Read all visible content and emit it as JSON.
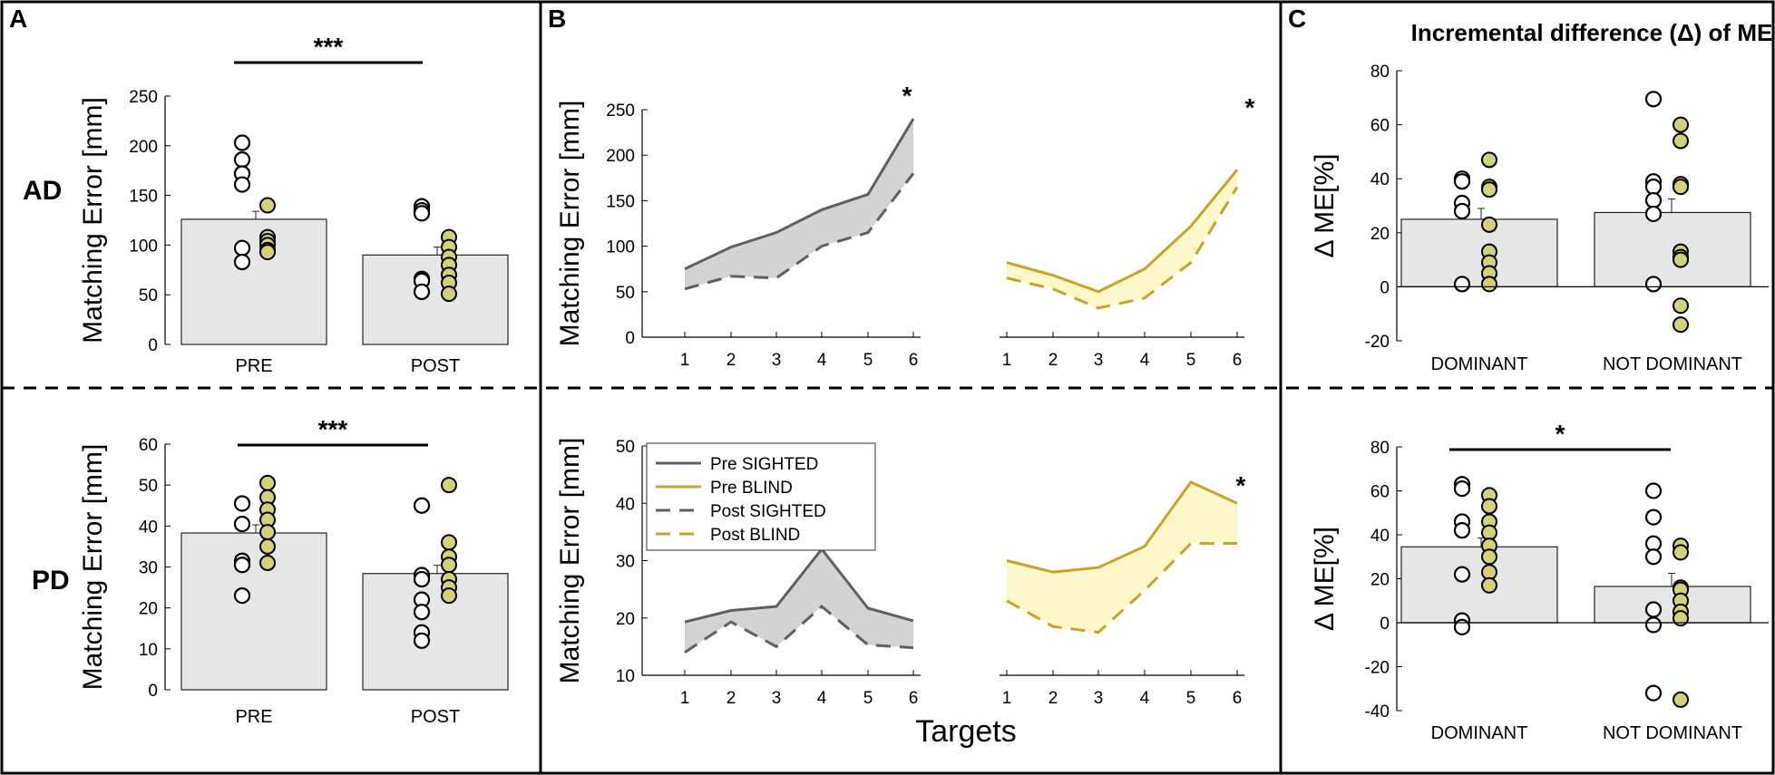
{
  "panel_labels": [
    "A",
    "B",
    "C"
  ],
  "row_labels": [
    "AD",
    "PD"
  ],
  "colors": {
    "bar_fill": "#e6e6e6",
    "sighted": "#5f5f5f",
    "blind": "#c9a227",
    "blind_marker": "#d4d17a",
    "sighted_fill": "#d3d3d3",
    "blind_fill": "#fbf7c9"
  },
  "chart_data": [
    {
      "id": "A_AD",
      "type": "bar",
      "title": "",
      "ylabel": "Matching Error [mm]",
      "ylim": [
        0,
        250
      ],
      "yticks": [
        0,
        50,
        100,
        150,
        200,
        250
      ],
      "categories": [
        "PRE",
        "POST"
      ],
      "values": [
        126,
        90
      ],
      "errors": [
        8,
        8
      ],
      "points_sighted": [
        [
          203,
          186,
          172,
          161,
          97,
          83
        ],
        [
          139,
          135,
          132,
          66,
          64,
          53
        ]
      ],
      "points_blind": [
        [
          140,
          108,
          104,
          100,
          95,
          93
        ],
        [
          108,
          98,
          88,
          80,
          70,
          62,
          51
        ]
      ],
      "significance": "***"
    },
    {
      "id": "A_PD",
      "type": "bar",
      "title": "",
      "ylabel": "Matching Error [mm]",
      "ylim": [
        0,
        60
      ],
      "yticks": [
        0,
        10,
        20,
        30,
        40,
        50,
        60
      ],
      "categories": [
        "PRE",
        "POST"
      ],
      "values": [
        38.3,
        28.4
      ],
      "errors": [
        2,
        2
      ],
      "points_sighted": [
        [
          45.5,
          40.5,
          31.5,
          30.5,
          23
        ],
        [
          45,
          28,
          27,
          22,
          19,
          14,
          12
        ]
      ],
      "points_blind": [
        [
          50.5,
          47,
          44,
          41.5,
          38.5,
          35,
          31
        ],
        [
          50,
          36,
          32.5,
          30.5,
          27,
          25,
          23
        ]
      ],
      "significance": "***"
    },
    {
      "id": "B_AD",
      "type": "line",
      "title": "",
      "ylabel": "Matching Error [mm]",
      "ylim": [
        0,
        250
      ],
      "yticks": [
        0,
        50,
        100,
        150,
        200,
        250
      ],
      "categories": [
        "1",
        "2",
        "3",
        "4",
        "5",
        "6"
      ],
      "series": [
        {
          "name": "Pre SIGHTED",
          "values": [
            75,
            99,
            115,
            140,
            157,
            240
          ]
        },
        {
          "name": "Post SIGHTED",
          "values": [
            53,
            67,
            65,
            100,
            115,
            180
          ]
        },
        {
          "name": "Pre BLIND",
          "values": [
            82,
            68,
            50,
            75,
            122,
            184
          ]
        },
        {
          "name": "Post BLIND",
          "values": [
            65,
            53,
            32,
            43,
            82,
            165
          ]
        }
      ],
      "annotations": [
        "*",
        "*"
      ]
    },
    {
      "id": "B_PD",
      "type": "line",
      "title": "",
      "ylabel": "Matching Error [mm]",
      "xlabel": "Targets",
      "ylim": [
        10,
        50
      ],
      "yticks": [
        10,
        20,
        30,
        40,
        50
      ],
      "categories": [
        "1",
        "2",
        "3",
        "4",
        "5",
        "6"
      ],
      "series": [
        {
          "name": "Pre SIGHTED",
          "values": [
            19.3,
            21.3,
            22,
            32,
            21.7,
            19.5
          ]
        },
        {
          "name": "Post SIGHTED",
          "values": [
            14,
            19.3,
            15,
            22,
            15.3,
            14.8
          ]
        },
        {
          "name": "Pre BLIND",
          "values": [
            30,
            28,
            28.8,
            32.5,
            43.7,
            40
          ]
        },
        {
          "name": "Post BLIND",
          "values": [
            23,
            18.5,
            17.5,
            24.8,
            33,
            33
          ]
        }
      ],
      "legend": [
        "Pre SIGHTED",
        "Pre BLIND",
        "Post SIGHTED",
        "Post BLIND"
      ],
      "annotations": [
        "*"
      ]
    },
    {
      "id": "C_AD",
      "type": "bar",
      "title": "Incremental difference (Δ) of ME",
      "ylabel": "Δ ME[%]",
      "ylim": [
        -20,
        80
      ],
      "yticks": [
        -20,
        0,
        20,
        40,
        60,
        80
      ],
      "categories": [
        "DOMINANT",
        "NOT DOMINANT"
      ],
      "values": [
        25,
        27.5
      ],
      "errors": [
        4,
        5
      ],
      "points_sighted": [
        [
          40,
          39,
          31,
          28,
          1
        ],
        [
          69.5,
          39,
          37,
          32,
          27,
          1
        ]
      ],
      "points_blind": [
        [
          47,
          37,
          36,
          23,
          13,
          9,
          5,
          1
        ],
        [
          60,
          54,
          38,
          37,
          13,
          11,
          10,
          -7,
          -14
        ]
      ]
    },
    {
      "id": "C_PD",
      "type": "bar",
      "title": "",
      "ylabel": "Δ ME[%]",
      "ylim": [
        -40,
        80
      ],
      "yticks": [
        -40,
        -20,
        0,
        20,
        40,
        60,
        80
      ],
      "categories": [
        "DOMINANT",
        "NOT DOMINANT"
      ],
      "values": [
        34.5,
        16.5
      ],
      "errors": [
        4,
        6
      ],
      "points_sighted": [
        [
          63,
          61,
          46,
          42,
          22,
          1,
          -2
        ],
        [
          60,
          48,
          36,
          30,
          6,
          -1,
          -32
        ]
      ],
      "points_blind": [
        [
          58,
          53,
          46,
          41,
          35,
          30,
          23,
          17
        ],
        [
          35,
          32,
          16,
          15,
          10,
          5,
          2,
          -35
        ]
      ],
      "significance": "*"
    }
  ]
}
